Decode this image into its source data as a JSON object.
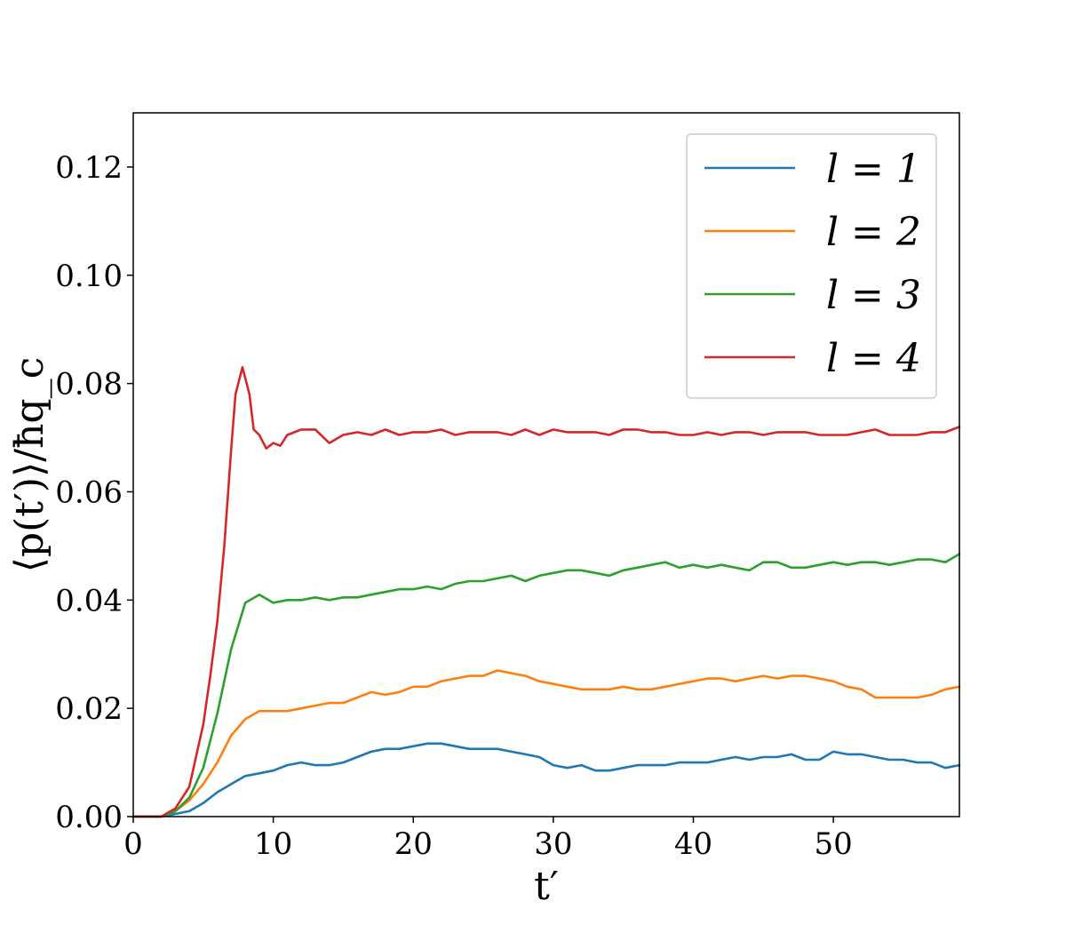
{
  "chart_data": {
    "type": "line",
    "xlabel": "t′",
    "ylabel": "⟨p(t′)⟩/ħq_c",
    "xlim": [
      0,
      59
    ],
    "ylim": [
      0,
      0.13
    ],
    "x_ticks": [
      0,
      10,
      20,
      30,
      40,
      50
    ],
    "x_tick_labels": [
      "0",
      "10",
      "20",
      "30",
      "40",
      "50"
    ],
    "y_ticks": [
      0,
      0.02,
      0.04,
      0.06,
      0.08,
      0.1,
      0.12
    ],
    "y_tick_labels": [
      "0.00",
      "0.02",
      "0.04",
      "0.06",
      "0.08",
      "0.10",
      "0.12"
    ],
    "grid": false,
    "legend_position": "top-right",
    "series": [
      {
        "name": "l = 1",
        "color": "#1f77b4",
        "x": [
          0,
          2,
          3,
          4,
          5,
          6,
          7,
          8,
          9,
          10,
          11,
          12,
          13,
          14,
          15,
          16,
          17,
          18,
          19,
          20,
          21,
          22,
          23,
          24,
          25,
          26,
          27,
          28,
          29,
          30,
          31,
          32,
          33,
          34,
          35,
          36,
          37,
          38,
          39,
          40,
          41,
          42,
          43,
          44,
          45,
          46,
          47,
          48,
          49,
          50,
          51,
          52,
          53,
          54,
          55,
          56,
          57,
          58,
          59
        ],
        "y": [
          0,
          0,
          0.0005,
          0.001,
          0.0025,
          0.0045,
          0.006,
          0.0075,
          0.008,
          0.0085,
          0.0095,
          0.01,
          0.0095,
          0.0095,
          0.01,
          0.011,
          0.012,
          0.0125,
          0.0125,
          0.013,
          0.0135,
          0.0135,
          0.013,
          0.0125,
          0.0125,
          0.0125,
          0.012,
          0.0115,
          0.011,
          0.0095,
          0.009,
          0.0095,
          0.0085,
          0.0085,
          0.009,
          0.0095,
          0.0095,
          0.0095,
          0.01,
          0.01,
          0.01,
          0.0105,
          0.011,
          0.0105,
          0.011,
          0.011,
          0.0115,
          0.0105,
          0.0105,
          0.012,
          0.0115,
          0.0115,
          0.011,
          0.0105,
          0.0105,
          0.01,
          0.01,
          0.009,
          0.0095
        ]
      },
      {
        "name": "l = 2",
        "color": "#ff7f0e",
        "x": [
          0,
          2,
          3,
          4,
          5,
          6,
          7,
          8,
          9,
          10,
          11,
          12,
          13,
          14,
          15,
          16,
          17,
          18,
          19,
          20,
          21,
          22,
          23,
          24,
          25,
          26,
          27,
          28,
          29,
          30,
          31,
          32,
          33,
          34,
          35,
          36,
          37,
          38,
          39,
          40,
          41,
          42,
          43,
          44,
          45,
          46,
          47,
          48,
          49,
          50,
          51,
          52,
          53,
          54,
          55,
          56,
          57,
          58,
          59
        ],
        "y": [
          0,
          0,
          0.001,
          0.003,
          0.006,
          0.01,
          0.015,
          0.018,
          0.0195,
          0.0195,
          0.0195,
          0.02,
          0.0205,
          0.021,
          0.021,
          0.022,
          0.023,
          0.0225,
          0.023,
          0.024,
          0.024,
          0.025,
          0.0255,
          0.026,
          0.026,
          0.027,
          0.0265,
          0.026,
          0.025,
          0.0245,
          0.024,
          0.0235,
          0.0235,
          0.0235,
          0.024,
          0.0235,
          0.0235,
          0.024,
          0.0245,
          0.025,
          0.0255,
          0.0255,
          0.025,
          0.0255,
          0.026,
          0.0255,
          0.026,
          0.026,
          0.0255,
          0.025,
          0.024,
          0.0235,
          0.022,
          0.022,
          0.022,
          0.022,
          0.0225,
          0.0235,
          0.024
        ]
      },
      {
        "name": "l = 3",
        "color": "#2ca02c",
        "x": [
          0,
          2,
          3,
          4,
          5,
          6,
          7,
          8,
          9,
          10,
          11,
          12,
          13,
          14,
          15,
          16,
          17,
          18,
          19,
          20,
          21,
          22,
          23,
          24,
          25,
          26,
          27,
          28,
          29,
          30,
          31,
          32,
          33,
          34,
          35,
          36,
          37,
          38,
          39,
          40,
          41,
          42,
          43,
          44,
          45,
          46,
          47,
          48,
          49,
          50,
          51,
          52,
          53,
          54,
          55,
          56,
          57,
          58,
          59
        ],
        "y": [
          0,
          0,
          0.001,
          0.0035,
          0.009,
          0.019,
          0.031,
          0.0395,
          0.041,
          0.0395,
          0.04,
          0.04,
          0.0405,
          0.04,
          0.0405,
          0.0405,
          0.041,
          0.0415,
          0.042,
          0.042,
          0.0425,
          0.042,
          0.043,
          0.0435,
          0.0435,
          0.044,
          0.0445,
          0.0435,
          0.0445,
          0.045,
          0.0455,
          0.0455,
          0.045,
          0.0445,
          0.0455,
          0.046,
          0.0465,
          0.047,
          0.046,
          0.0465,
          0.046,
          0.0465,
          0.046,
          0.0455,
          0.047,
          0.047,
          0.046,
          0.046,
          0.0465,
          0.047,
          0.0465,
          0.047,
          0.047,
          0.0465,
          0.047,
          0.0475,
          0.0475,
          0.047,
          0.0485
        ]
      },
      {
        "name": "l = 4",
        "color": "#d62728",
        "x": [
          0,
          2,
          3,
          4,
          5,
          5.5,
          6,
          6.5,
          7,
          7.3,
          7.6,
          7.8,
          8,
          8.3,
          8.6,
          9,
          9.5,
          10,
          10.5,
          11,
          12,
          13,
          14,
          15,
          16,
          17,
          18,
          19,
          20,
          21,
          22,
          23,
          24,
          25,
          26,
          27,
          28,
          29,
          30,
          31,
          32,
          33,
          34,
          35,
          36,
          37,
          38,
          39,
          40,
          41,
          42,
          43,
          44,
          45,
          46,
          47,
          48,
          49,
          50,
          51,
          52,
          53,
          54,
          55,
          56,
          57,
          58,
          59
        ],
        "y": [
          0,
          0,
          0.0015,
          0.0055,
          0.017,
          0.026,
          0.036,
          0.05,
          0.068,
          0.078,
          0.081,
          0.083,
          0.081,
          0.078,
          0.0715,
          0.0705,
          0.068,
          0.069,
          0.0685,
          0.0705,
          0.0715,
          0.0715,
          0.069,
          0.0705,
          0.071,
          0.0705,
          0.0715,
          0.0705,
          0.071,
          0.071,
          0.0715,
          0.0705,
          0.071,
          0.071,
          0.071,
          0.0705,
          0.0715,
          0.0705,
          0.0715,
          0.071,
          0.071,
          0.071,
          0.0705,
          0.0715,
          0.0715,
          0.071,
          0.071,
          0.0705,
          0.0705,
          0.071,
          0.0705,
          0.071,
          0.071,
          0.0705,
          0.071,
          0.071,
          0.071,
          0.0705,
          0.0705,
          0.0705,
          0.071,
          0.0715,
          0.0705,
          0.0705,
          0.0705,
          0.071,
          0.071,
          0.072
        ]
      }
    ]
  }
}
